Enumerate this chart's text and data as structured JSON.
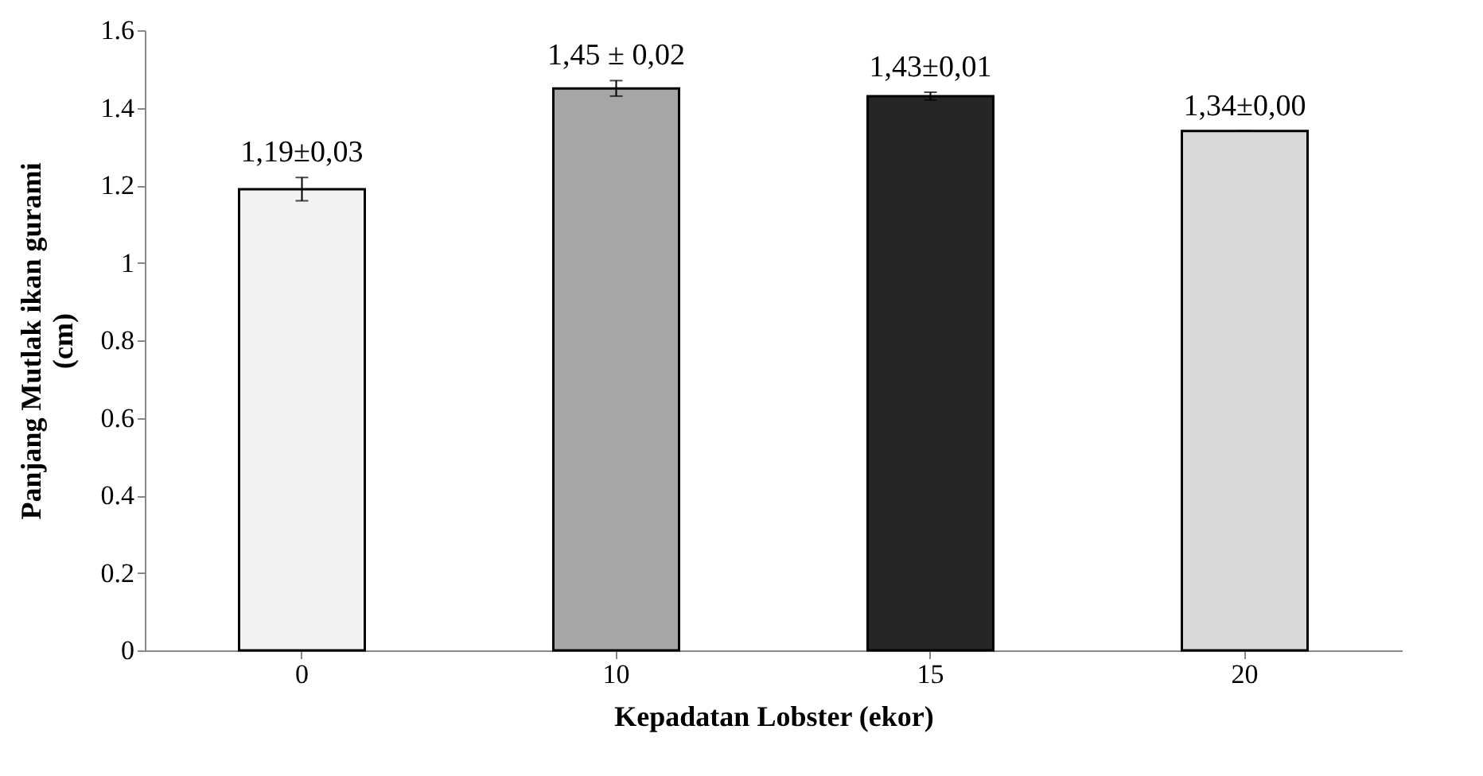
{
  "chart_data": {
    "type": "bar",
    "xlabel": "Kepadatan Lobster (ekor)",
    "ylabel": "Panjang Mutlak ikan gurami\n(cm)",
    "categories": [
      "0",
      "10",
      "15",
      "20"
    ],
    "values": [
      1.19,
      1.45,
      1.43,
      1.34
    ],
    "errors": [
      0.03,
      0.02,
      0.01,
      0.0
    ],
    "value_labels": [
      "1,19±0,03",
      "1,45 ± 0,02",
      "1,43±0,01",
      "1,34±0,00"
    ],
    "colors": [
      "#f2f2f2",
      "#a6a6a6",
      "#262626",
      "#d9d9d9"
    ],
    "ylim": [
      0,
      1.6
    ],
    "yticks": [
      0,
      0.2,
      0.4,
      0.6,
      0.8,
      1,
      1.2,
      1.4,
      1.6
    ]
  }
}
